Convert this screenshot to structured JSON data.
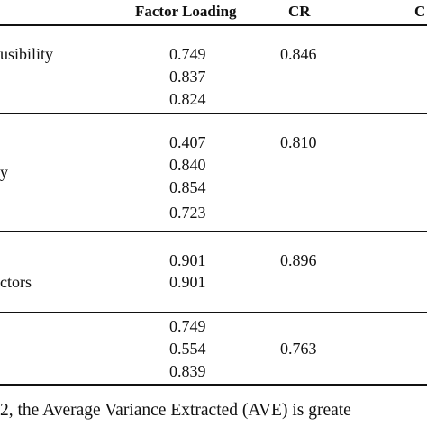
{
  "table": {
    "headers": {
      "factor_loading": "Factor Loading",
      "cr": "CR",
      "c": "C"
    },
    "groups": [
      {
        "label": "usibility",
        "loadings": [
          "0.749",
          "0.837",
          "0.824"
        ],
        "cr": "0.846"
      },
      {
        "label": "y",
        "loadings": [
          "0.407",
          "0.840",
          "0.854",
          "0.723"
        ],
        "cr": "0.810"
      },
      {
        "label": "ctors",
        "loadings": [
          "0.901",
          "0.901"
        ],
        "cr": "0.896"
      },
      {
        "label": "",
        "loadings": [
          "0.749",
          "0.554",
          "0.839"
        ],
        "cr": "0.763"
      }
    ]
  },
  "paragraph": {
    "text": "2, the Average Variance Extracted (AVE) is greate"
  }
}
